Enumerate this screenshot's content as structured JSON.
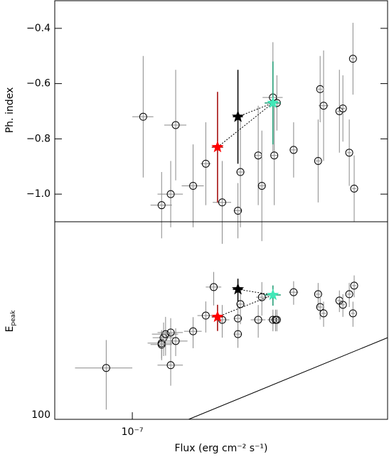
{
  "chart_data": [
    {
      "type": "scatter",
      "ylabel": "Ph. index",
      "xlim": [
        6.17e-08,
        4.9e-07
      ],
      "xlog": true,
      "ylim": [
        -1.1,
        -0.3
      ],
      "yticks": [
        {
          "value": -0.4,
          "label": "−0.4"
        },
        {
          "value": -0.6,
          "label": "−0.6"
        },
        {
          "value": -0.8,
          "label": "−0.8"
        },
        {
          "value": -1.0,
          "label": "−1.0"
        }
      ],
      "color": "#000000",
      "errcolor": "#888888",
      "x": [
        1.07e-07,
        1.31e-07,
        1.2e-07,
        1.27e-07,
        1.46e-07,
        1.58e-07,
        1.75e-07,
        1.93e-07,
        1.96e-07,
        2.19e-07,
        2.24e-07,
        2.4e-07,
        2.46e-07,
        2.42e-07,
        2.73e-07,
        3.18e-07,
        3.22e-07,
        3.29e-07,
        3.63e-07,
        3.71e-07,
        3.86e-07,
        3.95e-07,
        3.98e-07
      ],
      "xerr": [
        7e-09,
        9e-09,
        8e-09,
        1e-08,
        1e-08,
        5e-09,
        1e-08,
        5e-09,
        5e-09,
        5e-09,
        5e-09,
        1.5e-08,
        5e-09,
        5e-09,
        5e-09,
        5e-09,
        5e-09,
        1e-08,
        5e-09,
        5e-09,
        5e-09,
        5e-09,
        5e-09
      ],
      "y": [
        -0.72,
        -0.75,
        -1.04,
        -1.0,
        -0.97,
        -0.89,
        -1.03,
        -1.06,
        -0.92,
        -0.86,
        -0.97,
        -0.65,
        -0.67,
        -0.86,
        -0.84,
        -0.88,
        -0.62,
        -0.68,
        -0.7,
        -0.69,
        -0.85,
        -0.51,
        -0.98
      ],
      "yerr": [
        0.22,
        0.2,
        0.12,
        0.12,
        0.15,
        0.15,
        0.15,
        0.1,
        0.2,
        0.18,
        0.2,
        0.2,
        0.1,
        0.18,
        0.1,
        0.15,
        0.12,
        0.2,
        0.15,
        0.12,
        0.12,
        0.13,
        0.12
      ],
      "stars": [
        {
          "color": "#ff0000",
          "errcolor": "#a00000",
          "x": 1.7e-07,
          "xerr": 6e-09,
          "y": -0.83,
          "yerr": 0.2
        },
        {
          "color": "#000000",
          "errcolor": "#000000",
          "x": 1.93e-07,
          "xerr": 6e-09,
          "y": -0.72,
          "yerr": 0.17
        },
        {
          "color": "#40e8b8",
          "errcolor": "#1a9a70",
          "x": 2.4e-07,
          "xerr": 1.2e-08,
          "y": -0.67,
          "yerr": 0.15
        }
      ]
    },
    {
      "type": "scatter",
      "ylabel": {
        "main": "E",
        "sub": "peak"
      },
      "xlabel": "Flux (erg cm⁻² s⁻¹)",
      "xlim": [
        6.17e-08,
        4.9e-07
      ],
      "xlog": true,
      "xticks": [
        {
          "value": 1e-07,
          "label": "10⁻⁷"
        }
      ],
      "ylim": [
        100,
        1000
      ],
      "ylog": true,
      "yticks": [
        100
      ],
      "color": "#000000",
      "errcolor": "#888888",
      "x": [
        8.5e-08,
        1.2e-07,
        1.2e-07,
        1.215e-07,
        1.23e-07,
        1.27e-07,
        1.27e-07,
        1.31e-07,
        1.46e-07,
        1.58e-07,
        1.66e-07,
        1.75e-07,
        1.93e-07,
        1.93e-07,
        1.96e-07,
        2.19e-07,
        2.24e-07,
        2.4e-07,
        2.44e-07,
        2.46e-07,
        2.73e-07,
        3.18e-07,
        3.22e-07,
        3.29e-07,
        3.63e-07,
        3.71e-07,
        3.86e-07,
        3.95e-07,
        3.98e-07
      ],
      "xerr": [
        1.5e-08,
        1e-08,
        8e-09,
        8e-09,
        1e-08,
        1e-08,
        1e-08,
        1e-08,
        8e-09,
        8e-09,
        8e-09,
        8e-09,
        5e-09,
        5e-09,
        5e-09,
        1e-08,
        8e-09,
        8e-09,
        8e-09,
        5e-09,
        8e-09,
        5e-09,
        8e-09,
        5e-09,
        5e-09,
        5e-09,
        5e-09,
        5e-09,
        5e-09
      ],
      "y": [
        182,
        243,
        239,
        259,
        270,
        275,
        188,
        249,
        279,
        335,
        467,
        319,
        324,
        270,
        383,
        319,
        415,
        319,
        319,
        319,
        440,
        430,
        370,
        344,
        399,
        380,
        430,
        344,
        475
      ],
      "yerr": [
        70,
        40,
        40,
        50,
        60,
        50,
        40,
        40,
        50,
        60,
        90,
        60,
        60,
        40,
        80,
        60,
        80,
        40,
        40,
        40,
        60,
        60,
        50,
        50,
        50,
        50,
        60,
        50,
        60
      ],
      "stars": [
        {
          "color": "#ff0000",
          "errcolor": "#a00000",
          "x": 1.7e-07,
          "xerr": 6e-09,
          "y": 330,
          "yerr": 50
        },
        {
          "color": "#000000",
          "errcolor": "#000000",
          "x": 1.93e-07,
          "xerr": 6e-09,
          "y": 455,
          "yerr": 60
        },
        {
          "color": "#40e8b8",
          "errcolor": "#1a9a70",
          "x": 2.4e-07,
          "xerr": 1.2e-08,
          "y": 426,
          "yerr": 50
        }
      ],
      "line": {
        "x": [
          1.42e-07,
          4.9e-07
        ],
        "y": [
          100,
          259
        ]
      }
    }
  ]
}
